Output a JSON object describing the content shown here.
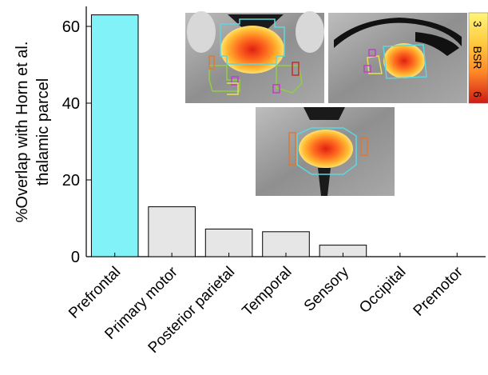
{
  "chart_data": {
    "type": "bar",
    "categories": [
      "Prefrontal",
      "Primary motor",
      "Posterior parietal",
      "Temporal",
      "Sensory",
      "Occipital",
      "Premotor"
    ],
    "values": [
      63,
      13,
      7.2,
      6.5,
      3.0,
      0,
      0
    ],
    "colors": [
      "#80f2f8",
      "#e6e6e6",
      "#e6e6e6",
      "#e6e6e6",
      "#e6e6e6",
      "#e6e6e6",
      "#e6e6e6"
    ],
    "ylabel_lines": [
      "%Overlap with Horn et al.",
      "thalamic parcel"
    ],
    "ylim": [
      0,
      65
    ],
    "yticks": [
      0,
      20,
      40,
      60
    ],
    "xlabel": "",
    "grid": false,
    "colorbar": {
      "label": "BSR",
      "min_label": "3",
      "max_label": "6",
      "colors": [
        "#fff57a",
        "#ffc83c",
        "#ff8a28",
        "#f04a1c",
        "#d01a14"
      ]
    }
  }
}
